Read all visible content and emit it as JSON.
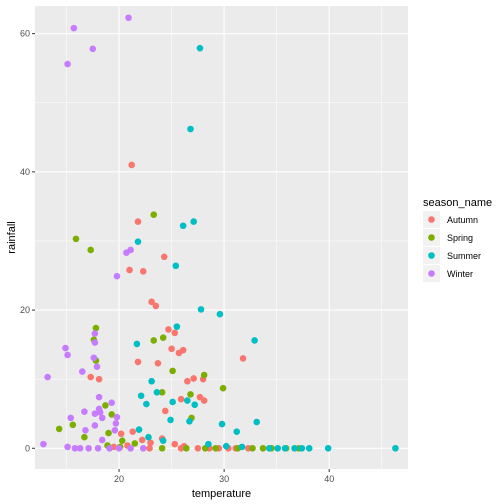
{
  "chart_data": {
    "type": "scatter",
    "xlabel": "temperature",
    "ylabel": "rainfall",
    "xlim": [
      12,
      47.5
    ],
    "ylim": [
      -3,
      64
    ],
    "x_ticks": [
      20,
      30,
      40
    ],
    "y_ticks": [
      0,
      20,
      40,
      60
    ],
    "grid": true,
    "legend": {
      "title": "season_name",
      "position": "right"
    },
    "series": [
      {
        "name": "Autumn",
        "color": "#F8766D",
        "points": [
          [
            21.2,
            41
          ],
          [
            21.8,
            32.8
          ],
          [
            21,
            25.8
          ],
          [
            22.3,
            25.6
          ],
          [
            24.3,
            27.7
          ],
          [
            23.1,
            21.2
          ],
          [
            23.5,
            20.6
          ],
          [
            24.7,
            17.2
          ],
          [
            25.3,
            16.7
          ],
          [
            25,
            14.4
          ],
          [
            21.8,
            12.5
          ],
          [
            23.7,
            12.3
          ],
          [
            25.7,
            13.8
          ],
          [
            26.1,
            14.2
          ],
          [
            31.8,
            13
          ],
          [
            17.3,
            10.3
          ],
          [
            18.1,
            10
          ],
          [
            26.5,
            9.7
          ],
          [
            27.1,
            10.1
          ],
          [
            28,
            10
          ],
          [
            25.9,
            7.1
          ],
          [
            27.7,
            7.4
          ],
          [
            28.1,
            6.9
          ],
          [
            24.4,
            5.4
          ],
          [
            20.2,
            2.1
          ],
          [
            21.3,
            2.4
          ],
          [
            22.2,
            1.2
          ],
          [
            23,
            0.8
          ],
          [
            24.1,
            1.4
          ],
          [
            25.3,
            0.6
          ],
          [
            26.2,
            0.3
          ],
          [
            19.5,
            0.2
          ],
          [
            20.8,
            0.4
          ],
          [
            22.9,
            0
          ],
          [
            25.9,
            0
          ],
          [
            27.5,
            0
          ],
          [
            28.6,
            0
          ],
          [
            29.5,
            0
          ],
          [
            30.4,
            0
          ],
          [
            31.1,
            0
          ],
          [
            32.3,
            0
          ]
        ]
      },
      {
        "name": "Spring",
        "color": "#7CAE00",
        "points": [
          [
            23.3,
            33.8
          ],
          [
            15.9,
            30.3
          ],
          [
            17.3,
            28.7
          ],
          [
            17.8,
            17.4
          ],
          [
            17.6,
            15.7
          ],
          [
            23.3,
            15.6
          ],
          [
            17.8,
            12.7
          ],
          [
            24.2,
            16
          ],
          [
            25.1,
            11.2
          ],
          [
            28.1,
            10.6
          ],
          [
            29.9,
            8.7
          ],
          [
            24.1,
            8.1
          ],
          [
            26.8,
            7.8
          ],
          [
            18.7,
            6.2
          ],
          [
            19.3,
            4.9
          ],
          [
            26.9,
            4.4
          ],
          [
            15.6,
            3.4
          ],
          [
            14.3,
            2.8
          ],
          [
            19,
            2.2
          ],
          [
            16.7,
            1.6
          ],
          [
            20.3,
            1.1
          ],
          [
            21.5,
            0.7
          ],
          [
            18.9,
            0.4
          ],
          [
            20.1,
            0.2
          ],
          [
            24.1,
            0
          ],
          [
            26.4,
            0
          ],
          [
            28.2,
            0
          ],
          [
            29.2,
            0
          ],
          [
            31.3,
            0
          ],
          [
            32.7,
            0
          ],
          [
            33.7,
            0
          ],
          [
            34.5,
            0
          ],
          [
            35.9,
            0
          ],
          [
            37.1,
            0
          ]
        ]
      },
      {
        "name": "Summer",
        "color": "#00BFC4",
        "points": [
          [
            27.7,
            57.9
          ],
          [
            26.8,
            46.2
          ],
          [
            27.1,
            32.8
          ],
          [
            26.1,
            32.2
          ],
          [
            21.8,
            29.9
          ],
          [
            25.4,
            26.4
          ],
          [
            27.8,
            20.1
          ],
          [
            29.6,
            19.4
          ],
          [
            25.5,
            17.6
          ],
          [
            32.9,
            15.6
          ],
          [
            21.7,
            15.1
          ],
          [
            22.1,
            7.6
          ],
          [
            23.1,
            9.7
          ],
          [
            23.6,
            8.1
          ],
          [
            22.6,
            6.4
          ],
          [
            25.1,
            6.7
          ],
          [
            26.5,
            6.9
          ],
          [
            27.2,
            6.3
          ],
          [
            24.9,
            4.1
          ],
          [
            26.7,
            3.9
          ],
          [
            29.8,
            3.5
          ],
          [
            31.2,
            2.4
          ],
          [
            33.1,
            3.8
          ],
          [
            21.9,
            2.7
          ],
          [
            22.8,
            1.6
          ],
          [
            24.2,
            1.1
          ],
          [
            28.5,
            0.6
          ],
          [
            30.2,
            0.3
          ],
          [
            31.7,
            0.2
          ],
          [
            34.3,
            0
          ],
          [
            35.1,
            0
          ],
          [
            35.8,
            0
          ],
          [
            36.7,
            0
          ],
          [
            37.4,
            0
          ],
          [
            38.1,
            0
          ],
          [
            39.9,
            0
          ],
          [
            46.3,
            0
          ]
        ]
      },
      {
        "name": "Winter",
        "color": "#C77CFF",
        "points": [
          [
            20.9,
            62.3
          ],
          [
            15.7,
            60.8
          ],
          [
            17.5,
            57.8
          ],
          [
            15.1,
            55.6
          ],
          [
            21.1,
            28.7
          ],
          [
            20.7,
            28.3
          ],
          [
            19.8,
            24.9
          ],
          [
            17.7,
            16.6
          ],
          [
            17.7,
            15.3
          ],
          [
            14.9,
            14.5
          ],
          [
            15.1,
            13.5
          ],
          [
            17.6,
            13.1
          ],
          [
            17.9,
            11.8
          ],
          [
            16.5,
            11.1
          ],
          [
            13.2,
            10.3
          ],
          [
            18.1,
            7.4
          ],
          [
            19.3,
            6.6
          ],
          [
            18.1,
            5.7
          ],
          [
            18.2,
            5.2
          ],
          [
            16.7,
            5.3
          ],
          [
            17.7,
            5
          ],
          [
            15.4,
            4.4
          ],
          [
            18.4,
            4.4
          ],
          [
            19.8,
            4.5
          ],
          [
            19.7,
            3.6
          ],
          [
            17.7,
            3.3
          ],
          [
            16.8,
            2.6
          ],
          [
            19.6,
            2.6
          ],
          [
            18.4,
            1.2
          ],
          [
            12.8,
            0.6
          ],
          [
            15.1,
            0.2
          ],
          [
            16.3,
            0
          ],
          [
            17.1,
            0
          ],
          [
            18,
            0
          ],
          [
            19.1,
            0
          ],
          [
            20,
            0
          ],
          [
            21.1,
            0
          ],
          [
            15.8,
            0
          ],
          [
            22.3,
            0
          ]
        ]
      }
    ]
  }
}
